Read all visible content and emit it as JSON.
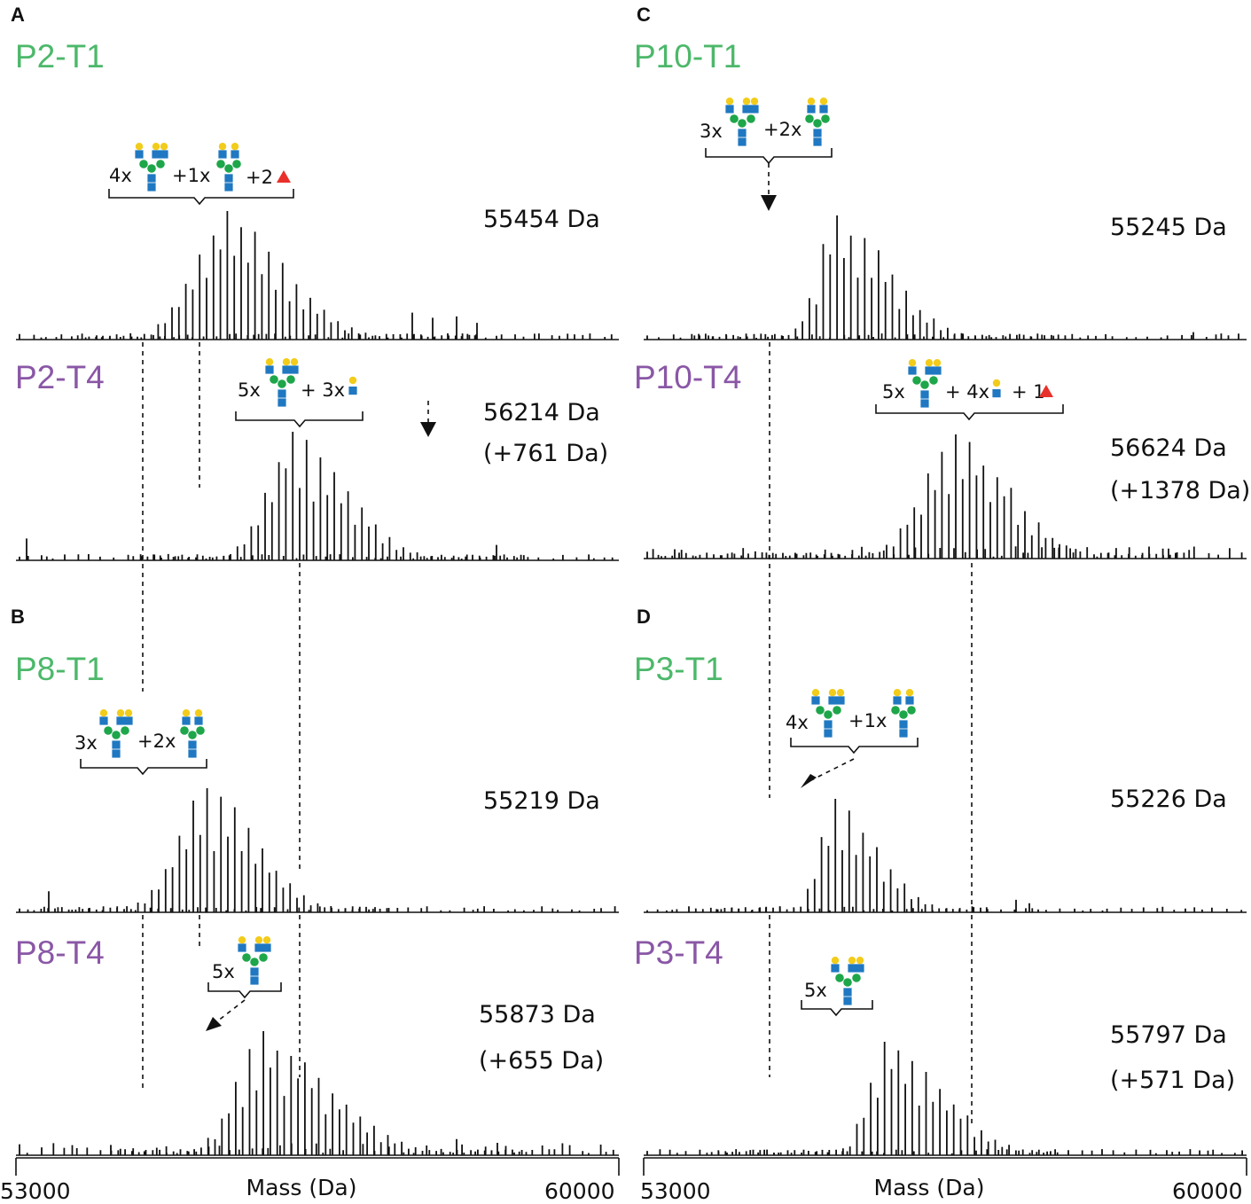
{
  "colors": {
    "t1": "#4cb86a",
    "t4": "#8a57a6",
    "galactose": "#f2cc1a",
    "glcnac": "#1f78c1",
    "mannose": "#1ea64a",
    "fucose": "#e8302a",
    "spectrum": "#111111"
  },
  "legend_note": "glycan icons: yellow circle = galactose, blue square = GlcNAc, green circle = mannose, red triangle = fucose",
  "chart_data": [
    {
      "type": "line",
      "id": "A1",
      "panel_label": "A",
      "sample": "P2-T1",
      "group": "T1",
      "mass_label": "55454 Da",
      "shift_label": "",
      "xlim": [
        53000,
        60000
      ],
      "xlabel": "Mass (Da)",
      "apex_mass": 55454,
      "glycan_annotation": {
        "parts": [
          "4x",
          "triant",
          "+1x",
          "biant",
          "+2",
          "fuc"
        ]
      }
    },
    {
      "type": "line",
      "id": "A2",
      "panel_label": "",
      "sample": "P2-T4",
      "group": "T4",
      "mass_label": "56214 Da",
      "shift_label": "(+761 Da)",
      "xlim": [
        53000,
        60000
      ],
      "xlabel": "Mass (Da)",
      "apex_mass": 56214,
      "glycan_annotation": {
        "parts": [
          "5x",
          "triant",
          "+ 3x",
          "lacnac"
        ]
      }
    },
    {
      "type": "line",
      "id": "B1",
      "panel_label": "B",
      "sample": "P8-T1",
      "group": "T1",
      "mass_label": "55219 Da",
      "shift_label": "",
      "xlim": [
        53000,
        60000
      ],
      "xlabel": "Mass (Da)",
      "apex_mass": 55219,
      "glycan_annotation": {
        "parts": [
          "3x",
          "triant",
          "+2x",
          "biant"
        ]
      }
    },
    {
      "type": "line",
      "id": "B2",
      "panel_label": "",
      "sample": "P8-T4",
      "group": "T4",
      "mass_label": "55873 Da",
      "shift_label": "(+655 Da)",
      "xlim": [
        53000,
        60000
      ],
      "xlabel": "Mass (Da)",
      "apex_mass": 55873,
      "glycan_annotation": {
        "parts": [
          "5x",
          "triant"
        ]
      }
    },
    {
      "type": "line",
      "id": "C1",
      "panel_label": "C",
      "sample": "P10-T1",
      "group": "T1",
      "mass_label": "55245 Da",
      "shift_label": "",
      "xlim": [
        53000,
        60000
      ],
      "xlabel": "Mass (Da)",
      "apex_mass": 55245,
      "glycan_annotation": {
        "parts": [
          "3x",
          "triant",
          "+2x",
          "biant"
        ]
      }
    },
    {
      "type": "line",
      "id": "C2",
      "panel_label": "",
      "sample": "P10-T4",
      "group": "T4",
      "mass_label": "56624 Da",
      "shift_label": "(+1378 Da)",
      "xlim": [
        53000,
        60000
      ],
      "xlabel": "Mass (Da)",
      "apex_mass": 56624,
      "glycan_annotation": {
        "parts": [
          "5x",
          "triant",
          "+ 4x",
          "lacnac",
          "+ 1",
          "fuc"
        ]
      }
    },
    {
      "type": "line",
      "id": "D1",
      "panel_label": "D",
      "sample": "P3-T1",
      "group": "T1",
      "mass_label": "55226 Da",
      "shift_label": "",
      "xlim": [
        53000,
        60000
      ],
      "xlabel": "Mass (Da)",
      "apex_mass": 55226,
      "glycan_annotation": {
        "parts": [
          "4x",
          "triant",
          "+1x",
          "biant"
        ]
      }
    },
    {
      "type": "line",
      "id": "D2",
      "panel_label": "",
      "sample": "P3-T4",
      "group": "T4",
      "mass_label": "55797 Da",
      "shift_label": "(+571 Da)",
      "xlim": [
        53000,
        60000
      ],
      "xlabel": "Mass (Da)",
      "apex_mass": 55797,
      "glycan_annotation": {
        "parts": [
          "5x",
          "triant"
        ]
      }
    }
  ],
  "x_axes": [
    {
      "id": "left",
      "tick_labels": [
        "53000",
        "60000"
      ],
      "xlabel": "Mass (Da)"
    },
    {
      "id": "right",
      "tick_labels": [
        "53000",
        "60000"
      ],
      "xlabel": "Mass (Da)"
    }
  ]
}
